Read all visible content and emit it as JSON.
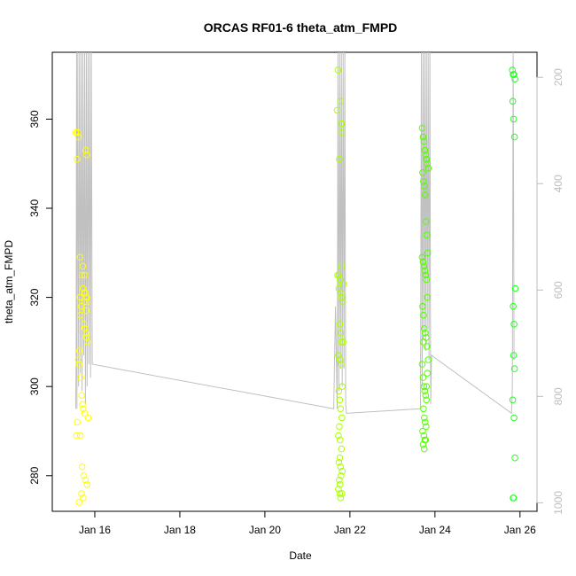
{
  "chart_data": {
    "type": "scatter",
    "title": "ORCAS RF01-6 theta_atm_FMPD",
    "xlabel": "Date",
    "ylabel": "theta_atm_FMPD",
    "x_ticks": [
      "Jan 16",
      "Jan 18",
      "Jan 20",
      "Jan 22",
      "Jan 24",
      "Jan 26"
    ],
    "x_tick_days": [
      16,
      18,
      20,
      22,
      24,
      26
    ],
    "xlim_days": [
      15.0,
      26.4
    ],
    "ylim": [
      272,
      375
    ],
    "y_ticks": [
      280,
      300,
      320,
      340,
      360
    ],
    "right_axis": {
      "ticks": [
        200,
        400,
        600,
        800,
        1000
      ],
      "range": [
        1016,
        153
      ],
      "color": "#bdbdbd"
    },
    "line_color": "#c0c0c0",
    "series": [
      {
        "color": "#ffff00",
        "x": [
          15.62,
          15.55,
          15.6,
          15.58,
          15.65,
          15.7,
          15.72,
          15.75,
          15.78,
          15.8,
          15.82,
          15.68,
          15.66,
          15.74,
          15.77,
          15.79,
          15.81,
          15.83,
          15.64,
          15.61,
          15.63,
          15.67,
          15.69,
          15.71,
          15.73,
          15.76,
          15.84,
          15.59,
          15.57,
          15.66,
          15.7,
          15.74,
          15.78,
          15.82,
          15.69,
          15.73,
          15.63,
          15.79,
          15.81,
          15.77,
          15.65,
          15.72,
          15.75,
          15.8
        ],
        "y": [
          356,
          357,
          357,
          351,
          329,
          325,
          327,
          321,
          321,
          320,
          319,
          318,
          316,
          314,
          313,
          312,
          311,
          310,
          308,
          306,
          305,
          302,
          298,
          296,
          295,
          294,
          293,
          292,
          289,
          289,
          282,
          280,
          279,
          278,
          276,
          275,
          274,
          353,
          352,
          325,
          320,
          322,
          319,
          317
        ]
      },
      {
        "color": "#aaff00",
        "x": [
          21.72,
          21.7,
          21.78,
          21.8,
          21.82,
          21.75,
          21.77,
          21.85,
          21.74,
          21.79,
          21.81,
          21.83,
          21.76,
          21.78,
          21.8,
          21.73,
          21.77,
          21.79,
          21.82,
          21.74,
          21.76,
          21.78,
          21.81,
          21.75,
          21.73,
          21.77,
          21.8,
          21.76,
          21.74,
          21.78,
          21.82,
          21.79,
          21.75,
          21.77,
          21.73,
          21.76,
          21.81,
          21.78,
          21.74,
          21.8,
          21.84,
          21.71
        ],
        "y": [
          371,
          362,
          364,
          359,
          357,
          351,
          324,
          323,
          322,
          321,
          320,
          319,
          314,
          312,
          310,
          307,
          306,
          305,
          300,
          299,
          297,
          295,
          293,
          291,
          289,
          288,
          286,
          284,
          283,
          282,
          281,
          280,
          279,
          278,
          277,
          276,
          276,
          275,
          325,
          327,
          310,
          325
        ]
      },
      {
        "color": "#55ff00",
        "x": [
          23.7,
          23.72,
          23.74,
          23.76,
          23.78,
          23.8,
          23.82,
          23.84,
          23.71,
          23.73,
          23.75,
          23.77,
          23.79,
          23.81,
          23.83,
          23.7,
          23.72,
          23.74,
          23.76,
          23.78,
          23.8,
          23.82,
          23.71,
          23.73,
          23.75,
          23.77,
          23.79,
          23.81,
          23.7,
          23.72,
          23.74,
          23.76,
          23.78,
          23.8,
          23.73,
          23.75,
          23.77,
          23.79,
          23.71,
          23.74,
          23.76,
          23.78,
          23.72,
          23.75,
          23.8,
          23.82,
          23.84,
          23.73
        ],
        "y": [
          358,
          356,
          355,
          353,
          352,
          351,
          350,
          349,
          348,
          346,
          345,
          343,
          337,
          334,
          330,
          329,
          328,
          327,
          326,
          325,
          324,
          320,
          318,
          316,
          313,
          312,
          311,
          309,
          305,
          302,
          300,
          299,
          298,
          297,
          295,
          293,
          292,
          291,
          290,
          289,
          288,
          288,
          287,
          286,
          300,
          303,
          306,
          310
        ]
      },
      {
        "color": "#22ff22",
        "x": [
          25.82,
          25.84,
          25.86,
          25.88,
          25.83,
          25.85,
          25.87,
          25.89,
          25.84,
          25.86,
          25.85,
          25.87,
          25.83,
          25.86,
          25.88,
          25.85,
          25.84
        ],
        "y": [
          371,
          370,
          370,
          369,
          364,
          360,
          356,
          322,
          318,
          314,
          307,
          304,
          297,
          293,
          284,
          275,
          275
        ]
      }
    ],
    "line_x": [
      15.55,
      15.56,
      15.57,
      15.58,
      15.6,
      15.62,
      15.64,
      15.66,
      15.68,
      15.7,
      15.72,
      15.74,
      15.76,
      15.78,
      15.8,
      15.82,
      15.84,
      15.86,
      15.88,
      15.9,
      15.92,
      15.94,
      21.62,
      21.66,
      21.7,
      21.72,
      21.74,
      21.76,
      21.78,
      21.8,
      21.82,
      21.84,
      21.86,
      21.88,
      21.9,
      21.92,
      23.66,
      23.68,
      23.7,
      23.72,
      23.74,
      23.76,
      23.78,
      23.8,
      23.82,
      23.84,
      23.86,
      23.88,
      23.9,
      23.92,
      25.8,
      25.82,
      25.84,
      25.86
    ],
    "line_y": [
      295,
      306,
      375,
      295,
      375,
      300,
      375,
      303,
      375,
      299,
      375,
      307,
      375,
      296,
      375,
      300,
      375,
      305,
      375,
      302,
      375,
      305,
      295,
      318,
      295,
      375,
      299,
      375,
      304,
      375,
      300,
      375,
      304,
      375,
      296,
      294,
      295,
      375,
      300,
      375,
      312,
      375,
      308,
      375,
      313,
      375,
      306,
      375,
      296,
      307,
      294,
      300,
      375,
      306
    ]
  }
}
